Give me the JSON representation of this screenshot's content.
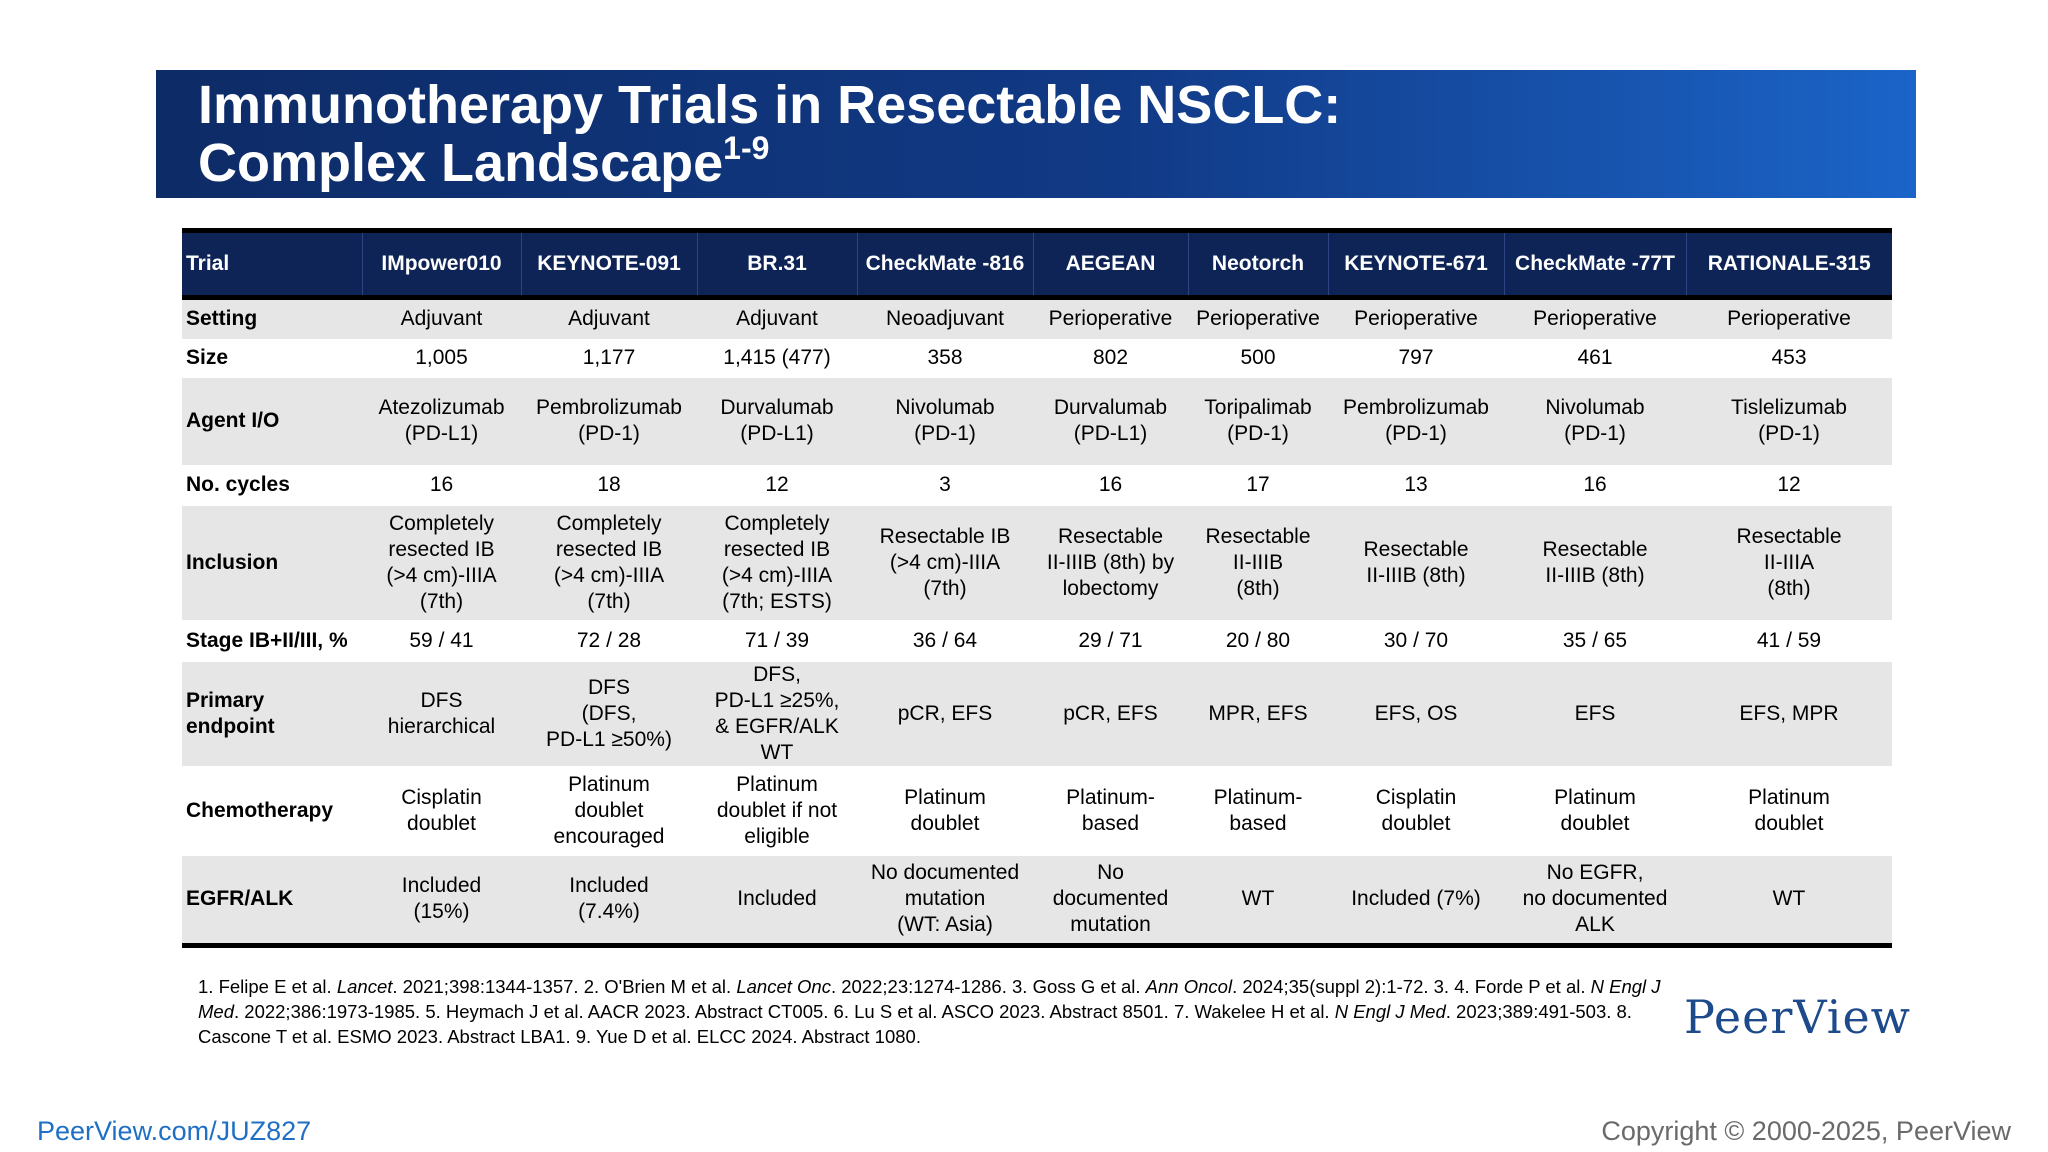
{
  "title": {
    "line1": "Immunotherapy Trials in Resectable NSCLC:",
    "line2": "Complex Landscape",
    "superscript": "1-9"
  },
  "table": {
    "header_label": "Trial",
    "trials": [
      "IMpower010",
      "KEYNOTE-091",
      "BR.31",
      "CheckMate -816",
      "AEGEAN",
      "Neotorch",
      "KEYNOTE-671",
      "CheckMate -77T",
      "RATIONALE-315"
    ],
    "rows": [
      {
        "label": "Setting",
        "cells": [
          "Adjuvant",
          "Adjuvant",
          "Adjuvant",
          "Neoadjuvant",
          "Perioperative",
          "Perioperative",
          "Perioperative",
          "Perioperative",
          "Perioperative"
        ]
      },
      {
        "label": "Size",
        "cells": [
          "1,005",
          "1,177",
          "1,415 (477)",
          "358",
          "802",
          "500",
          "797",
          "461",
          "453"
        ]
      },
      {
        "label": "Agent I/O",
        "cells": [
          "Atezolizumab\n(PD-L1)",
          "Pembrolizumab\n(PD-1)",
          "Durvalumab\n(PD-L1)",
          "Nivolumab\n(PD-1)",
          "Durvalumab\n(PD-L1)",
          "Toripalimab\n(PD-1)",
          "Pembrolizumab\n(PD-1)",
          "Nivolumab\n(PD-1)",
          "Tislelizumab\n(PD-1)"
        ]
      },
      {
        "label": "No. cycles",
        "cells": [
          "16",
          "18",
          "12",
          "3",
          "16",
          "17",
          "13",
          "16",
          "12"
        ]
      },
      {
        "label": "Inclusion",
        "cells": [
          "Completely\nresected IB\n(>4 cm)-IIIA\n(7th)",
          "Completely\nresected IB\n(>4 cm)-IIIA\n(7th)",
          "Completely\nresected IB\n(>4 cm)-IIIA\n(7th; ESTS)",
          "Resectable IB\n(>4 cm)-IIIA\n(7th)",
          "Resectable\nII-IIIB (8th) by\nlobectomy",
          "Resectable\nII-IIIB\n(8th)",
          "Resectable\nII-IIIB (8th)",
          "Resectable\nII-IIIB (8th)",
          "Resectable\nII-IIIA\n(8th)"
        ]
      },
      {
        "label": "Stage IB+II/III, %",
        "cells": [
          "59 / 41",
          "72 / 28",
          "71 / 39",
          "36 / 64",
          "29 / 71",
          "20 / 80",
          "30 / 70",
          "35 / 65",
          "41 / 59"
        ]
      },
      {
        "label": "Primary\nendpoint",
        "cells": [
          "DFS\nhierarchical",
          "DFS\n(DFS,\nPD-L1 ≥50%)",
          "DFS,\nPD-L1 ≥25%,\n& EGFR/ALK\nWT",
          "pCR, EFS",
          "pCR, EFS",
          "MPR, EFS",
          "EFS, OS",
          "EFS",
          "EFS, MPR"
        ]
      },
      {
        "label": "Chemotherapy",
        "cells": [
          "Cisplatin\ndoublet",
          "Platinum\ndoublet\nencouraged",
          "Platinum\ndoublet if not\neligible",
          "Platinum\ndoublet",
          "Platinum-\nbased",
          "Platinum-\nbased",
          "Cisplatin\ndoublet",
          "Platinum\ndoublet",
          "Platinum\ndoublet"
        ]
      },
      {
        "label": "EGFR/ALK",
        "cells": [
          "Included\n(15%)",
          "Included\n(7.4%)",
          "Included",
          "No documented\nmutation\n(WT: Asia)",
          "No\ndocumented\nmutation",
          "WT",
          "Included (7%)",
          "No EGFR,\nno documented\nALK",
          "WT"
        ]
      }
    ]
  },
  "references": [
    {
      "prefix": "1. Felipe E et al. ",
      "journal": "Lancet",
      "suffix": ". 2021;398:1344-1357. 2. O'Brien M et al. "
    },
    {
      "prefix": "",
      "journal": "Lancet Onc",
      "suffix": ". 2022;23:1274-1286. 3. Goss G et al. "
    },
    {
      "prefix": "",
      "journal": "Ann Oncol",
      "suffix": ". 2024;35(suppl 2):1-72. 3. 4. Forde P et al. "
    },
    {
      "prefix": "",
      "journal": "N Engl J Med",
      "suffix": ". 2022;386:1973-1985. 5. Heymach J et al. AACR 2023. Abstract CT005. 6. Lu S et al. ASCO 2023. Abstract 8501. 7. Wakelee H et al. "
    },
    {
      "prefix": "",
      "journal": "N Engl J Med",
      "suffix": ". 2023;389:491-503. 8. Cascone T et al. ESMO 2023. Abstract LBA1. 9. Yue D et al. ELCC 2024. Abstract 1080."
    }
  ],
  "logo_text": "PeerView",
  "footer": {
    "link": "PeerView.com/JUZ827",
    "copyright": "Copyright © 2000-2025, PeerView"
  }
}
